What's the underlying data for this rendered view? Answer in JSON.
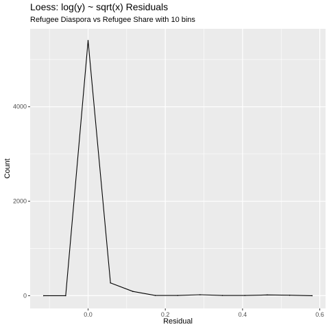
{
  "chart_data": {
    "type": "line",
    "title": "Loess: log(y) ~ sqrt(x) Residuals",
    "subtitle": "Refugee Diaspora vs Refugee Share with 10 bins",
    "xlabel": "Residual",
    "ylabel": "Count",
    "xlim": [
      -0.15,
      0.615
    ],
    "ylim": [
      -270,
      5650
    ],
    "x_ticks": [
      0.0,
      0.2,
      0.4,
      0.6
    ],
    "x_tick_labels": [
      "0.0",
      "0.2",
      "0.4",
      "0.6"
    ],
    "y_ticks": [
      0,
      2000,
      4000
    ],
    "y_tick_labels": [
      "0",
      "2000",
      "4000"
    ],
    "grid": true,
    "line_color": "#000000",
    "panel_color": "#ebebeb",
    "grid_color": "#ffffff",
    "x": [
      -0.115,
      -0.058,
      0.0,
      0.058,
      0.116,
      0.174,
      0.232,
      0.29,
      0.348,
      0.406,
      0.464,
      0.522,
      0.58
    ],
    "y": [
      0,
      0,
      5400,
      270,
      90,
      5,
      5,
      20,
      5,
      5,
      15,
      10,
      0
    ]
  }
}
